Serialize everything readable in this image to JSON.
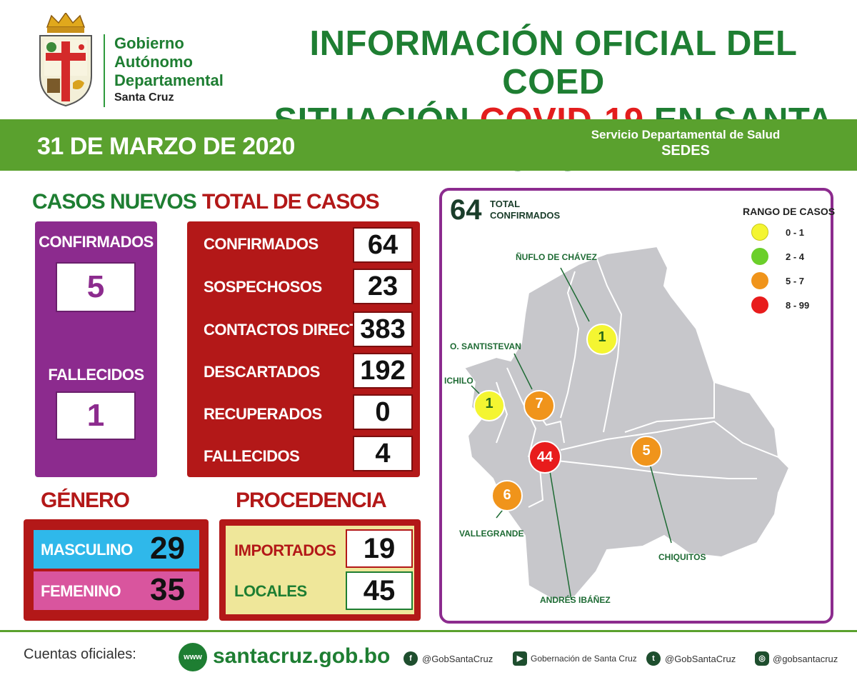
{
  "header": {
    "gov_line1": "Gobierno",
    "gov_line2": "Autónomo",
    "gov_line3": "Departamental",
    "gov_line4": "Santa Cruz",
    "title_line1": "INFORMACIÓN OFICIAL DEL COED",
    "title_line2_a": "SITUACIÓN ",
    "title_line2_b": "COVID-19",
    "title_line2_c": " EN SANTA CRUZ"
  },
  "band": {
    "date": "31 DE MARZO DE 2020",
    "sedes_line1": "Servicio Departamental de Salud",
    "sedes_line2": "SEDES"
  },
  "casos_nuevos": {
    "title": "CASOS NUEVOS",
    "confirmados_label": "CONFIRMADOS",
    "confirmados_value": "5",
    "fallecidos_label": "FALLECIDOS",
    "fallecidos_value": "1"
  },
  "total_casos": {
    "title": "TOTAL DE CASOS",
    "rows": [
      {
        "label": "CONFIRMADOS",
        "value": "64"
      },
      {
        "label": "SOSPECHOSOS",
        "value": "23"
      },
      {
        "label": "CONTACTOS DIRECTOS",
        "value": "383"
      },
      {
        "label": "DESCARTADOS",
        "value": "192"
      },
      {
        "label": "RECUPERADOS",
        "value": "0"
      },
      {
        "label": "FALLECIDOS",
        "value": "4"
      }
    ]
  },
  "genero": {
    "title": "GÉNERO",
    "masculino_label": "MASCULINO",
    "masculino_value": "29",
    "femenino_label": "FEMENINO",
    "femenino_value": "35"
  },
  "procedencia": {
    "title": "PROCEDENCIA",
    "importados_label": "IMPORTADOS",
    "importados_value": "19",
    "locales_label": "LOCALES",
    "locales_value": "45"
  },
  "map": {
    "total_value": "64",
    "total_label_1": "TOTAL",
    "total_label_2": "CONFIRMADOS",
    "rango_title": "RANGO DE CASOS",
    "ranges": [
      {
        "label": "0 - 1",
        "color": "#f4f531"
      },
      {
        "label": "2 - 4",
        "color": "#6bcf2a"
      },
      {
        "label": "5 - 7",
        "color": "#f0941b"
      },
      {
        "label": "8 - 99",
        "color": "#e81c1c"
      }
    ],
    "provinces": [
      {
        "name": "ÑUFLO DE CHÁVEZ",
        "cases": "1",
        "color": "#f4f531"
      },
      {
        "name": "O. SANTISTEVAN",
        "cases": "7",
        "color": "#f0941b"
      },
      {
        "name": "ICHILO",
        "cases": "1",
        "color": "#f4f531"
      },
      {
        "name": "ANDRÉS IBÁÑEZ",
        "cases": "44",
        "color": "#e81c1c"
      },
      {
        "name": "CHIQUITOS",
        "cases": "5",
        "color": "#f0941b"
      },
      {
        "name": "VALLEGRANDE",
        "cases": "6",
        "color": "#f0941b"
      }
    ]
  },
  "footer": {
    "cuentas": "Cuentas oficiales:",
    "website": "santacruz.gob.bo",
    "facebook": "@GobSantaCruz",
    "youtube": "Gobernación de Santa Cruz",
    "twitter": "@GobSantaCruz",
    "instagram": "@gobsantacruz"
  }
}
